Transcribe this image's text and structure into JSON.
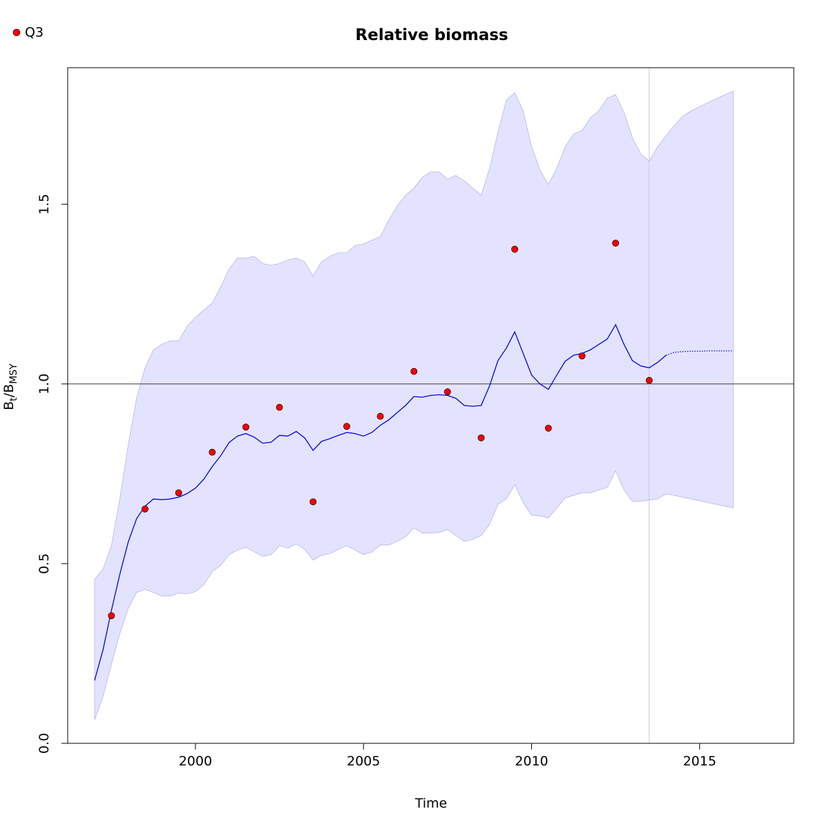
{
  "chart_data": {
    "type": "line",
    "title": "Relative biomass",
    "xlabel": "Time",
    "ylabel_main": "B",
    "ylabel_sub1": "t",
    "ylabel_sep": "/B",
    "ylabel_sub2": "MSY",
    "xlim": [
      1996.2,
      2017.8
    ],
    "ylim": [
      0.0,
      1.88
    ],
    "xticks": [
      2000,
      2005,
      2010,
      2015
    ],
    "yticks": [
      0.0,
      0.5,
      1.0,
      1.5
    ],
    "xtick_labels": [
      "2000",
      "2005",
      "2010",
      "2015"
    ],
    "ytick_labels": [
      "0.0",
      "0.5",
      "1.0",
      "1.5"
    ],
    "reference_line_y": 1.0,
    "vertical_line_x": 2013.5,
    "colors": {
      "band": "#e3e3ff",
      "band_edge": "#b4b4f0",
      "line": "#0000e6",
      "points": "#ff0000",
      "ref_line": "#3a3a3a",
      "vline": "#c8c8d0"
    },
    "legend": {
      "position": "top-left",
      "entries": [
        {
          "label": "Q3",
          "marker": "filled-circle",
          "color": "#ff0000"
        }
      ]
    },
    "series": [
      {
        "name": "",
        "kind": "estimate",
        "x": [
          1997.0,
          1997.25,
          1997.5,
          1997.75,
          1998.0,
          1998.25,
          1998.5,
          1998.75,
          1999.0,
          1999.25,
          1999.5,
          1999.75,
          2000.0,
          2000.25,
          2000.5,
          2000.75,
          2001.0,
          2001.25,
          2001.5,
          2001.75,
          2002.0,
          2002.25,
          2002.5,
          2002.75,
          2003.0,
          2003.25,
          2003.5,
          2003.75,
          2004.0,
          2004.25,
          2004.5,
          2004.75,
          2005.0,
          2005.25,
          2005.5,
          2005.75,
          2006.0,
          2006.25,
          2006.5,
          2006.75,
          2007.0,
          2007.25,
          2007.5,
          2007.75,
          2008.0,
          2008.25,
          2008.5,
          2008.75,
          2009.0,
          2009.25,
          2009.5,
          2009.75,
          2010.0,
          2010.25,
          2010.5,
          2010.75,
          2011.0,
          2011.25,
          2011.5,
          2011.75,
          2012.0,
          2012.25,
          2012.5,
          2012.75,
          2013.0,
          2013.25,
          2013.5,
          2013.75,
          2014.0
        ],
        "y": [
          0.175,
          0.26,
          0.37,
          0.47,
          0.56,
          0.625,
          0.66,
          0.68,
          0.678,
          0.68,
          0.685,
          0.695,
          0.71,
          0.735,
          0.77,
          0.8,
          0.837,
          0.855,
          0.862,
          0.852,
          0.835,
          0.838,
          0.857,
          0.855,
          0.868,
          0.85,
          0.815,
          0.84,
          0.848,
          0.857,
          0.865,
          0.862,
          0.855,
          0.865,
          0.885,
          0.9,
          0.92,
          0.94,
          0.965,
          0.963,
          0.968,
          0.97,
          0.968,
          0.96,
          0.94,
          0.938,
          0.94,
          0.995,
          1.065,
          1.1,
          1.145,
          1.085,
          1.025,
          1.0,
          0.985,
          1.025,
          1.063,
          1.08,
          1.085,
          1.095,
          1.11,
          1.125,
          1.165,
          1.11,
          1.065,
          1.05,
          1.045,
          1.06,
          1.08
        ]
      },
      {
        "name": "",
        "kind": "prediction",
        "x": [
          2014.0,
          2014.25,
          2014.5,
          2014.75,
          2015.0,
          2015.25,
          2015.5,
          2015.75,
          2016.0
        ],
        "y": [
          1.08,
          1.088,
          1.09,
          1.091,
          1.091,
          1.092,
          1.092,
          1.092,
          1.092
        ]
      },
      {
        "name": "",
        "kind": "upper_ci",
        "x": [
          1997.0,
          1997.25,
          1997.5,
          1997.75,
          1998.0,
          1998.25,
          1998.5,
          1998.75,
          1999.0,
          1999.25,
          1999.5,
          1999.75,
          2000.0,
          2000.25,
          2000.5,
          2000.75,
          2001.0,
          2001.25,
          2001.5,
          2001.75,
          2002.0,
          2002.25,
          2002.5,
          2002.75,
          2003.0,
          2003.25,
          2003.5,
          2003.75,
          2004.0,
          2004.25,
          2004.5,
          2004.75,
          2005.0,
          2005.25,
          2005.5,
          2005.75,
          2006.0,
          2006.25,
          2006.5,
          2006.75,
          2007.0,
          2007.25,
          2007.5,
          2007.75,
          2008.0,
          2008.25,
          2008.5,
          2008.75,
          2009.0,
          2009.25,
          2009.5,
          2009.75,
          2010.0,
          2010.25,
          2010.5,
          2010.75,
          2011.0,
          2011.25,
          2011.5,
          2011.75,
          2012.0,
          2012.25,
          2012.5,
          2012.75,
          2013.0,
          2013.25,
          2013.5,
          2013.75,
          2014.0,
          2014.25,
          2014.5,
          2014.75,
          2015.0,
          2015.25,
          2015.5,
          2015.75,
          2016.0
        ],
        "y": [
          0.455,
          0.485,
          0.55,
          0.68,
          0.83,
          0.96,
          1.045,
          1.095,
          1.11,
          1.12,
          1.12,
          1.16,
          1.185,
          1.205,
          1.225,
          1.27,
          1.32,
          1.35,
          1.35,
          1.355,
          1.335,
          1.33,
          1.335,
          1.345,
          1.35,
          1.34,
          1.3,
          1.34,
          1.355,
          1.365,
          1.365,
          1.385,
          1.39,
          1.4,
          1.41,
          1.455,
          1.495,
          1.525,
          1.545,
          1.575,
          1.59,
          1.59,
          1.57,
          1.58,
          1.565,
          1.545,
          1.525,
          1.6,
          1.7,
          1.79,
          1.81,
          1.76,
          1.66,
          1.595,
          1.555,
          1.6,
          1.66,
          1.695,
          1.705,
          1.74,
          1.76,
          1.795,
          1.805,
          1.755,
          1.685,
          1.64,
          1.62,
          1.66,
          1.69,
          1.72,
          1.745,
          1.76,
          1.772,
          1.783,
          1.794,
          1.805,
          1.815
        ]
      },
      {
        "name": "",
        "kind": "lower_ci",
        "x": [
          1997.0,
          1997.25,
          1997.5,
          1997.75,
          1998.0,
          1998.25,
          1998.5,
          1998.75,
          1999.0,
          1999.25,
          1999.5,
          1999.75,
          2000.0,
          2000.25,
          2000.5,
          2000.75,
          2001.0,
          2001.25,
          2001.5,
          2001.75,
          2002.0,
          2002.25,
          2002.5,
          2002.75,
          2003.0,
          2003.25,
          2003.5,
          2003.75,
          2004.0,
          2004.25,
          2004.5,
          2004.75,
          2005.0,
          2005.25,
          2005.5,
          2005.75,
          2006.0,
          2006.25,
          2006.5,
          2006.75,
          2007.0,
          2007.25,
          2007.5,
          2007.75,
          2008.0,
          2008.25,
          2008.5,
          2008.75,
          2009.0,
          2009.25,
          2009.5,
          2009.75,
          2010.0,
          2010.25,
          2010.5,
          2010.75,
          2011.0,
          2011.25,
          2011.5,
          2011.75,
          2012.0,
          2012.25,
          2012.5,
          2012.75,
          2013.0,
          2013.25,
          2013.5,
          2013.75,
          2014.0,
          2014.25,
          2014.5,
          2014.75,
          2015.0,
          2015.25,
          2015.5,
          2015.75,
          2016.0
        ],
        "y": [
          0.065,
          0.13,
          0.22,
          0.305,
          0.375,
          0.42,
          0.428,
          0.42,
          0.41,
          0.41,
          0.418,
          0.416,
          0.422,
          0.442,
          0.478,
          0.495,
          0.525,
          0.538,
          0.545,
          0.533,
          0.52,
          0.525,
          0.55,
          0.543,
          0.555,
          0.54,
          0.51,
          0.523,
          0.528,
          0.54,
          0.55,
          0.538,
          0.525,
          0.532,
          0.552,
          0.552,
          0.562,
          0.575,
          0.6,
          0.585,
          0.585,
          0.587,
          0.595,
          0.578,
          0.562,
          0.567,
          0.578,
          0.61,
          0.665,
          0.68,
          0.72,
          0.67,
          0.635,
          0.633,
          0.627,
          0.655,
          0.683,
          0.69,
          0.697,
          0.697,
          0.705,
          0.712,
          0.758,
          0.705,
          0.673,
          0.673,
          0.677,
          0.68,
          0.694,
          0.69,
          0.685,
          0.68,
          0.675,
          0.67,
          0.665,
          0.66,
          0.655
        ]
      },
      {
        "name": "Q3",
        "kind": "observations",
        "x": [
          1997.5,
          1998.5,
          1999.5,
          2000.5,
          2001.5,
          2002.5,
          2003.5,
          2004.5,
          2005.5,
          2006.5,
          2007.5,
          2008.5,
          2009.5,
          2010.5,
          2011.5,
          2012.5,
          2013.5
        ],
        "y": [
          0.355,
          0.652,
          0.697,
          0.81,
          0.88,
          0.935,
          0.672,
          0.882,
          0.91,
          1.035,
          0.978,
          0.85,
          1.375,
          0.877,
          1.078,
          1.392,
          1.01
        ]
      }
    ]
  }
}
